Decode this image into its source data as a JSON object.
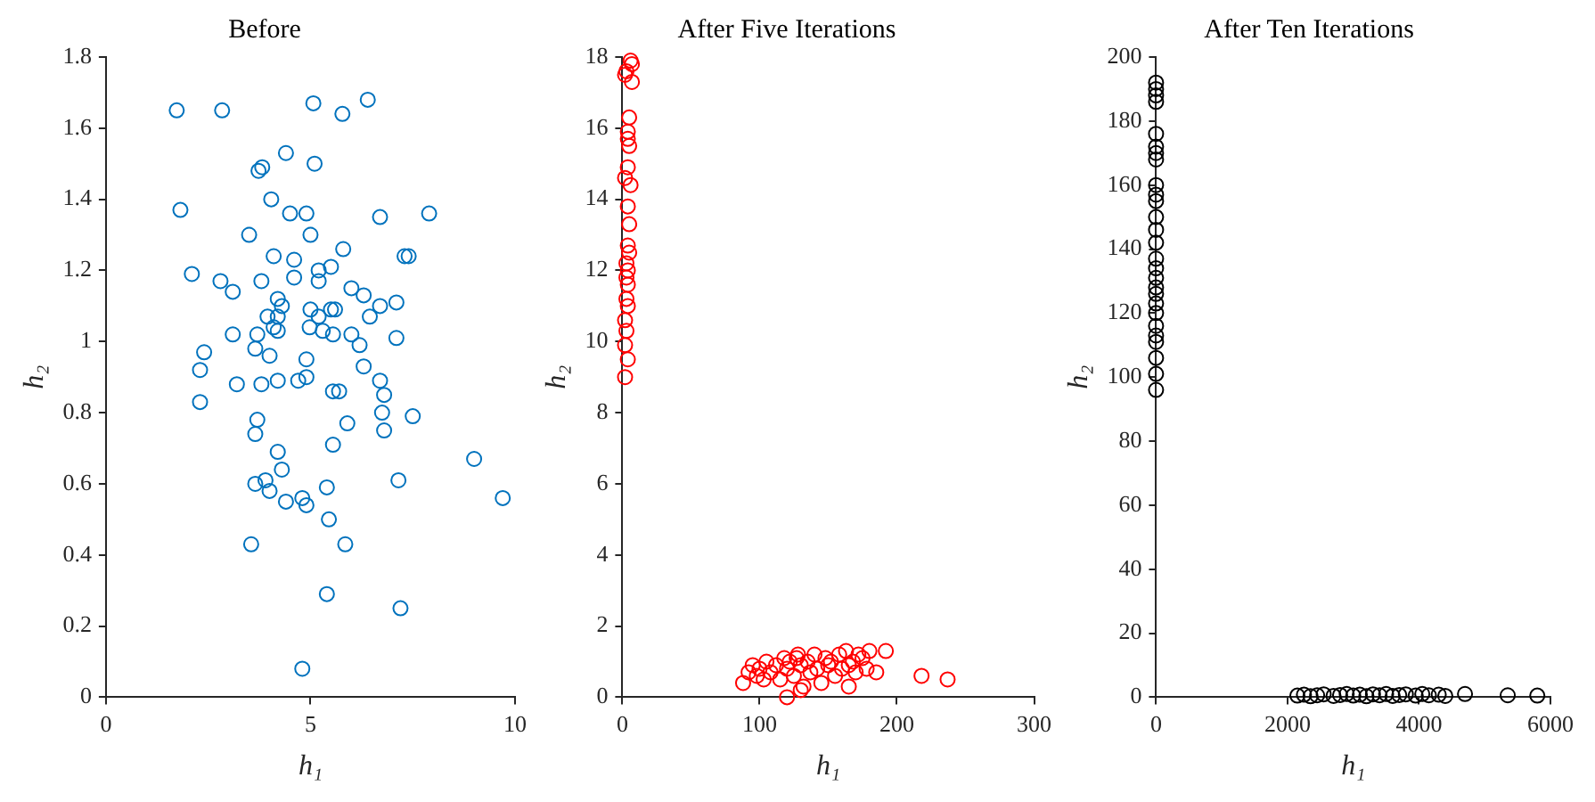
{
  "chart_data": [
    {
      "type": "scatter",
      "title": "Before",
      "xlabel": "h₁",
      "ylabel": "h₂",
      "xlim": [
        0,
        10
      ],
      "ylim": [
        0,
        1.8
      ],
      "xticks": [
        0,
        5,
        10
      ],
      "yticks": [
        0,
        0.2,
        0.4,
        0.6,
        0.8,
        1,
        1.2,
        1.4,
        1.6,
        1.8
      ],
      "grid": false,
      "marker": "circle",
      "legend": false,
      "series": [
        {
          "color": "#0072bd",
          "x": [
            1.73,
            2.84,
            5.07,
            5.78,
            6.4,
            4.4,
            5.1,
            3.73,
            3.82,
            1.82,
            4.04,
            4.5,
            4.9,
            6.7,
            7.9,
            3.5,
            5.0,
            5.8,
            4.1,
            4.6,
            7.3,
            7.4,
            2.1,
            2.8,
            3.1,
            3.8,
            4.6,
            5.2,
            5.5,
            5.2,
            6.0,
            6.3,
            4.2,
            4.3,
            3.95,
            4.2,
            5.0,
            5.2,
            5.5,
            5.6,
            6.45,
            6.7,
            7.1,
            4.1,
            4.2,
            4.98,
            5.3,
            5.55,
            6.0,
            6.2,
            7.1,
            3.1,
            3.7,
            4.0,
            4.9,
            3.65,
            2.4,
            2.3,
            2.3,
            3.2,
            3.8,
            4.2,
            4.7,
            4.9,
            5.55,
            5.7,
            6.3,
            6.7,
            6.8,
            6.75,
            6.8,
            7.5,
            5.9,
            5.55,
            4.2,
            3.7,
            3.65,
            3.9,
            4.0,
            4.4,
            3.65,
            4.3,
            4.8,
            4.9,
            5.4,
            5.45,
            5.85,
            7.15,
            9.0,
            9.7,
            3.55,
            5.4,
            7.2,
            4.8
          ],
          "values": [
            1.65,
            1.65,
            1.67,
            1.64,
            1.68,
            1.53,
            1.5,
            1.48,
            1.49,
            1.37,
            1.4,
            1.36,
            1.36,
            1.35,
            1.36,
            1.3,
            1.3,
            1.26,
            1.24,
            1.23,
            1.24,
            1.24,
            1.19,
            1.17,
            1.14,
            1.17,
            1.18,
            1.2,
            1.21,
            1.17,
            1.15,
            1.13,
            1.12,
            1.1,
            1.07,
            1.07,
            1.09,
            1.07,
            1.09,
            1.09,
            1.07,
            1.1,
            1.11,
            1.04,
            1.03,
            1.04,
            1.03,
            1.02,
            1.02,
            0.99,
            1.01,
            1.02,
            1.02,
            0.96,
            0.95,
            0.98,
            0.97,
            0.92,
            0.83,
            0.88,
            0.88,
            0.89,
            0.89,
            0.9,
            0.86,
            0.86,
            0.93,
            0.89,
            0.85,
            0.8,
            0.75,
            0.79,
            0.77,
            0.71,
            0.69,
            0.78,
            0.74,
            0.61,
            0.58,
            0.55,
            0.6,
            0.64,
            0.56,
            0.54,
            0.59,
            0.5,
            0.43,
            0.61,
            0.67,
            0.56,
            0.43,
            0.29,
            0.25,
            0.08
          ]
        }
      ]
    },
    {
      "type": "scatter",
      "title": "After Five Iterations",
      "xlabel": "h₁",
      "ylabel": "h₂",
      "xlim": [
        0,
        300
      ],
      "ylim": [
        0,
        18
      ],
      "xticks": [
        0,
        100,
        200,
        300
      ],
      "yticks": [
        0,
        2,
        4,
        6,
        8,
        10,
        12,
        14,
        16,
        18
      ],
      "grid": false,
      "marker": "circle",
      "legend": false,
      "series": [
        {
          "color": "#ff0000",
          "x": [
            6,
            7,
            3,
            2,
            7,
            5,
            4,
            4,
            5,
            4,
            2,
            6,
            4,
            5,
            4,
            5,
            3,
            4,
            3,
            4,
            3,
            4,
            2,
            3,
            2,
            4,
            2,
            88,
            92,
            95,
            98,
            100,
            103,
            105,
            108,
            112,
            115,
            118,
            120,
            122,
            125,
            127,
            128,
            130,
            132,
            135,
            137,
            140,
            142,
            145,
            148,
            150,
            152,
            155,
            158,
            160,
            163,
            165,
            168,
            170,
            172,
            175,
            178,
            180,
            185,
            192,
            120,
            130,
            165,
            218,
            237
          ],
          "values": [
            17.9,
            17.8,
            17.6,
            17.5,
            17.3,
            16.3,
            15.9,
            15.7,
            15.5,
            14.9,
            14.6,
            14.4,
            13.8,
            13.3,
            12.7,
            12.5,
            12.2,
            12.0,
            11.8,
            11.6,
            11.2,
            11.0,
            10.6,
            10.3,
            9.9,
            9.5,
            9.0,
            0.4,
            0.7,
            0.9,
            0.6,
            0.8,
            0.5,
            1.0,
            0.7,
            0.9,
            0.5,
            1.1,
            0.8,
            1.0,
            0.6,
            1.1,
            1.2,
            0.9,
            0.3,
            1.0,
            0.7,
            1.2,
            0.8,
            0.4,
            1.1,
            0.9,
            1.0,
            0.6,
            1.2,
            0.8,
            1.3,
            0.9,
            1.0,
            0.7,
            1.2,
            1.1,
            0.8,
            1.3,
            0.7,
            1.3,
            0.0,
            0.2,
            0.3,
            0.6,
            0.5
          ]
        }
      ]
    },
    {
      "type": "scatter",
      "title": "After Ten Iterations",
      "xlabel": "h₁",
      "ylabel": "h₂",
      "xlim": [
        0,
        6000
      ],
      "ylim": [
        0,
        200
      ],
      "xticks": [
        0,
        2000,
        4000,
        6000
      ],
      "yticks": [
        0,
        20,
        40,
        60,
        80,
        100,
        120,
        140,
        160,
        180,
        200
      ],
      "grid": false,
      "marker": "circle",
      "legend": false,
      "series": [
        {
          "color": "#000000",
          "x": [
            0,
            0,
            0,
            0,
            0,
            0,
            0,
            0,
            0,
            0,
            0,
            0,
            0,
            0,
            0,
            0,
            0,
            0,
            0,
            0,
            0,
            0,
            0,
            0,
            0,
            0,
            0,
            2150,
            2250,
            2350,
            2450,
            2550,
            2700,
            2800,
            2900,
            3000,
            3100,
            3200,
            3300,
            3400,
            3500,
            3600,
            3700,
            3800,
            3950,
            4050,
            4150,
            4300,
            4400,
            4700,
            5350,
            5800
          ],
          "values": [
            192,
            190,
            188,
            186,
            176,
            172,
            170,
            168,
            160,
            157,
            155,
            150,
            146,
            142,
            137,
            134,
            131,
            128,
            126,
            123,
            120,
            116,
            111,
            106,
            101,
            96,
            113,
            0.5,
            0.8,
            0.3,
            0.6,
            0.9,
            0.4,
            0.7,
            1.0,
            0.5,
            0.8,
            0.3,
            0.9,
            0.6,
            1.0,
            0.4,
            0.7,
            0.9,
            0.5,
            1.0,
            0.6,
            0.8,
            0.4,
            1.0,
            0.6,
            0.5
          ]
        }
      ]
    }
  ]
}
